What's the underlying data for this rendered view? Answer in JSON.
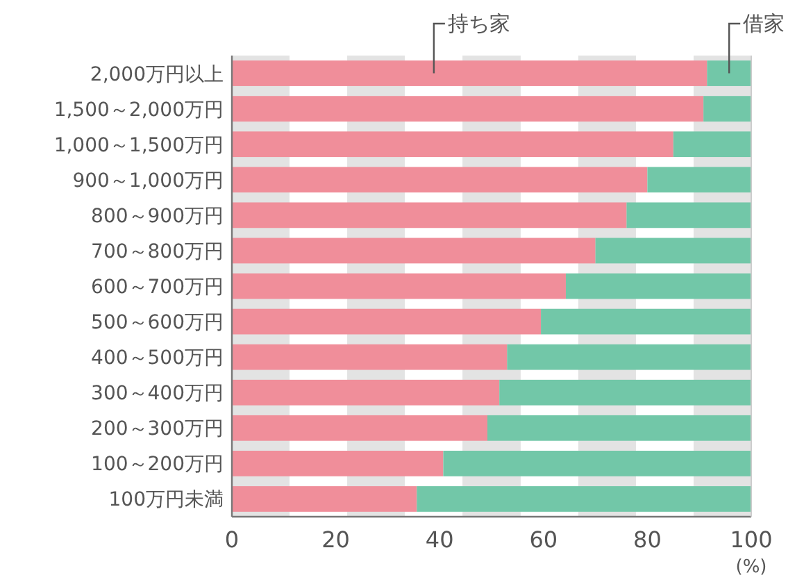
{
  "chart_data": {
    "type": "bar",
    "orientation": "horizontal",
    "stacked": true,
    "legend": false,
    "categories": [
      "2,000万円以上",
      "1,500～2,000万円",
      "1,000～1,500万円",
      "900～1,000万円",
      "800～900万円",
      "700～800万円",
      "600～700万円",
      "500～600万円",
      "400～500万円",
      "300～400万円",
      "200～300万円",
      "100～200万円",
      "100万円未満"
    ],
    "series": [
      {
        "name": "持ち家",
        "color": "#f08e9a",
        "values": [
          91.5,
          90.8,
          85,
          80,
          76,
          70,
          64.3,
          59.5,
          53,
          51.5,
          49.2,
          40.7,
          35.6
        ]
      },
      {
        "name": "借家",
        "color": "#72c7a8",
        "values": [
          8.5,
          9.2,
          15,
          20,
          24,
          30,
          35.7,
          40.5,
          47,
          48.5,
          50.8,
          59.3,
          64.4
        ]
      }
    ],
    "xlim": [
      0,
      100
    ],
    "xticks": [
      0,
      20,
      40,
      60,
      80,
      100
    ],
    "xlabel": "(%)",
    "bands": [
      {
        "axis": "x",
        "from": 0,
        "to": 11.1,
        "color": "#e3e3e3"
      },
      {
        "axis": "x",
        "from": 22.2,
        "to": 33.3,
        "color": "#e3e3e3"
      },
      {
        "axis": "x",
        "from": 44.4,
        "to": 55.6,
        "color": "#e3e3e3"
      },
      {
        "axis": "x",
        "from": 66.7,
        "to": 77.8,
        "color": "#e3e3e3"
      },
      {
        "axis": "x",
        "from": 88.9,
        "to": 100,
        "color": "#e3e3e3"
      }
    ]
  }
}
